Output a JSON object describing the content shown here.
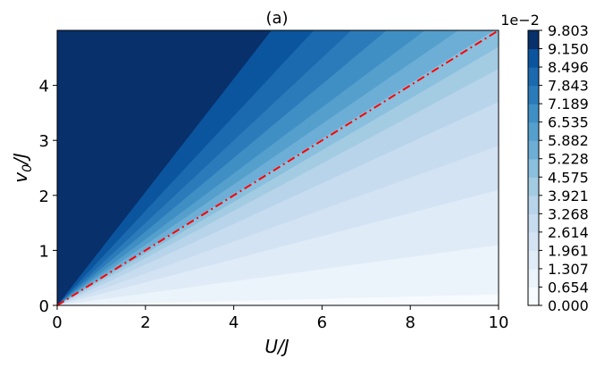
{
  "chart_data": {
    "type": "contourf",
    "title": "(a)",
    "xlabel": "U/J",
    "ylabel_main": "v",
    "ylabel_sub": "0",
    "ylabel_tail": "/J",
    "xlim": [
      0,
      10
    ],
    "ylim": [
      0,
      5
    ],
    "x_ticks": [
      "0",
      "2",
      "4",
      "6",
      "8",
      "10"
    ],
    "y_ticks": [
      "0",
      "1",
      "2",
      "3",
      "4"
    ],
    "colorbar": {
      "offset_label": "1e−2",
      "levels": [
        "0.000",
        "0.654",
        "1.307",
        "1.961",
        "2.614",
        "3.268",
        "3.921",
        "4.575",
        "5.228",
        "5.882",
        "6.535",
        "7.189",
        "7.843",
        "8.496",
        "9.150",
        "9.803"
      ],
      "colors": [
        "#f7fbff",
        "#ebf3fb",
        "#dfebf7",
        "#d3e3f3",
        "#c8dcf0",
        "#b7d4ea",
        "#a3cce3",
        "#8abfdd",
        "#6caed6",
        "#559fcd",
        "#3f8fc5",
        "#2b7bba",
        "#1b69af",
        "#0b559f",
        "#08306b"
      ]
    },
    "boundary_rays": [
      {
        "level": "0.654",
        "slope": 0.02
      },
      {
        "level": "1.307",
        "slope": 0.11
      },
      {
        "level": "1.961",
        "slope": 0.21
      },
      {
        "level": "2.614",
        "slope": 0.29
      },
      {
        "level": "3.268",
        "slope": 0.37
      },
      {
        "level": "3.921",
        "slope": 0.43
      },
      {
        "level": "4.575",
        "slope": 0.47
      },
      {
        "level": "5.228",
        "slope": 0.505
      },
      {
        "level": "5.882",
        "slope": 0.55
      },
      {
        "level": "6.535",
        "slope": 0.6
      },
      {
        "level": "7.189",
        "slope": 0.67
      },
      {
        "level": "7.843",
        "slope": 0.75
      },
      {
        "level": "8.496",
        "slope": 0.86
      },
      {
        "level": "9.150",
        "slope": 1.03
      }
    ],
    "reference_line": {
      "style": "dash-dot",
      "color": "#ff0000",
      "slope": 0.5
    }
  }
}
